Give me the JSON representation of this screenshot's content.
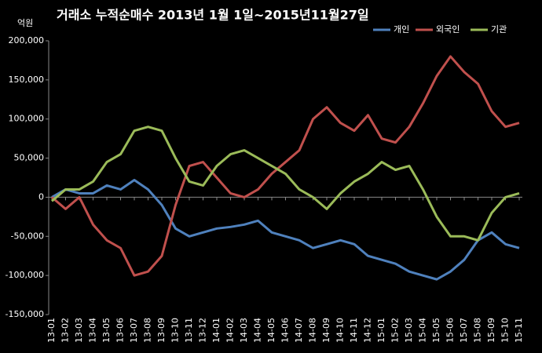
{
  "chart_data": {
    "type": "line",
    "title": "거래소 누적순매수 2013년 1월 1일~2015년11월27일",
    "unit": "억원",
    "categories": [
      "13-01",
      "13-02",
      "13-03",
      "13-04",
      "13-05",
      "13-06",
      "13-07",
      "13-08",
      "13-09",
      "13-10",
      "13-11",
      "13-12",
      "14-01",
      "14-02",
      "14-03",
      "14-04",
      "14-05",
      "14-06",
      "14-07",
      "14-08",
      "14-09",
      "14-10",
      "14-11",
      "14-12",
      "15-01",
      "15-02",
      "15-03",
      "15-04",
      "15-05",
      "15-06",
      "15-07",
      "15-08",
      "15-09",
      "15-10",
      "15-11"
    ],
    "series": [
      {
        "name": "개인",
        "color": "#4f81bd",
        "values": [
          0,
          10000,
          5000,
          5000,
          15000,
          10000,
          22000,
          10000,
          -10000,
          -40000,
          -50000,
          -45000,
          -40000,
          -38000,
          -35000,
          -30000,
          -45000,
          -50000,
          -55000,
          -65000,
          -60000,
          -55000,
          -60000,
          -75000,
          -80000,
          -85000,
          -95000,
          -100000,
          -105000,
          -95000,
          -80000,
          -55000,
          -45000,
          -60000,
          -65000
        ]
      },
      {
        "name": "외국인",
        "color": "#c0504d",
        "values": [
          0,
          -15000,
          0,
          -35000,
          -55000,
          -65000,
          -100000,
          -95000,
          -75000,
          -10000,
          40000,
          45000,
          25000,
          5000,
          0,
          10000,
          30000,
          45000,
          60000,
          100000,
          115000,
          95000,
          85000,
          105000,
          75000,
          70000,
          90000,
          120000,
          155000,
          180000,
          160000,
          145000,
          110000,
          90000,
          95000
        ]
      },
      {
        "name": "기관",
        "color": "#9bbb59",
        "values": [
          -5000,
          10000,
          10000,
          20000,
          45000,
          55000,
          85000,
          90000,
          85000,
          50000,
          20000,
          15000,
          40000,
          55000,
          60000,
          50000,
          40000,
          30000,
          10000,
          0,
          -15000,
          5000,
          20000,
          30000,
          45000,
          35000,
          40000,
          10000,
          -25000,
          -50000,
          -50000,
          -55000,
          -20000,
          0,
          5000
        ]
      }
    ],
    "ylim": [
      -150000,
      200000
    ],
    "yticks": [
      {
        "value": -150000,
        "label": "-150,000"
      },
      {
        "value": -100000,
        "label": "-100,000"
      },
      {
        "value": -50000,
        "label": "-50,000"
      },
      0,
      {
        "value": 50000,
        "label": "50,000"
      },
      {
        "value": 100000,
        "label": "100,000"
      },
      {
        "value": 150000,
        "label": "150,000"
      },
      {
        "value": 200000,
        "label": "200,000"
      }
    ],
    "legend": "top-right"
  }
}
